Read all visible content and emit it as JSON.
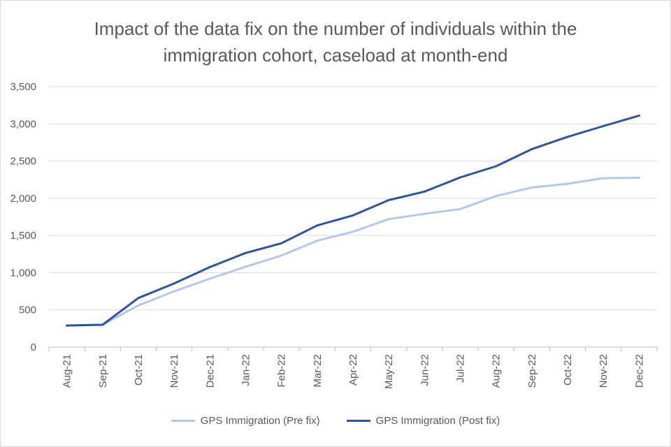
{
  "chart_data": {
    "type": "line",
    "title": "Impact of the data fix on the number of individuals within the immigration cohort, caseload at month-end",
    "xlabel": "",
    "ylabel": "",
    "ylim": [
      0,
      3500
    ],
    "yticks": [
      0,
      500,
      1000,
      1500,
      2000,
      2500,
      3000,
      3500
    ],
    "ytick_labels": [
      "0",
      "500",
      "1,000",
      "1,500",
      "2,000",
      "2,500",
      "3,000",
      "3,500"
    ],
    "categories": [
      "Aug-21",
      "Sep-21",
      "Oct-21",
      "Nov-21",
      "Dec-21",
      "Jan-22",
      "Feb-22",
      "Mar-22",
      "Apr-22",
      "May-22",
      "Jun-22",
      "Jul-22",
      "Aug-22",
      "Sep-22",
      "Oct-22",
      "Nov-22",
      "Dec-22"
    ],
    "series": [
      {
        "name": "GPS Immigration (Pre fix)",
        "color": "#b4c7e7",
        "values": [
          290,
          300,
          560,
          750,
          920,
          1080,
          1230,
          1430,
          1550,
          1720,
          1790,
          1855,
          2030,
          2145,
          2195,
          2270,
          2275
        ]
      },
      {
        "name": "GPS Immigration (Post fix)",
        "color": "#2f5597",
        "values": [
          290,
          300,
          660,
          855,
          1075,
          1265,
          1395,
          1635,
          1770,
          1975,
          2090,
          2280,
          2430,
          2660,
          2825,
          2970,
          3110
        ]
      }
    ],
    "grid": true,
    "legend_position": "bottom"
  }
}
